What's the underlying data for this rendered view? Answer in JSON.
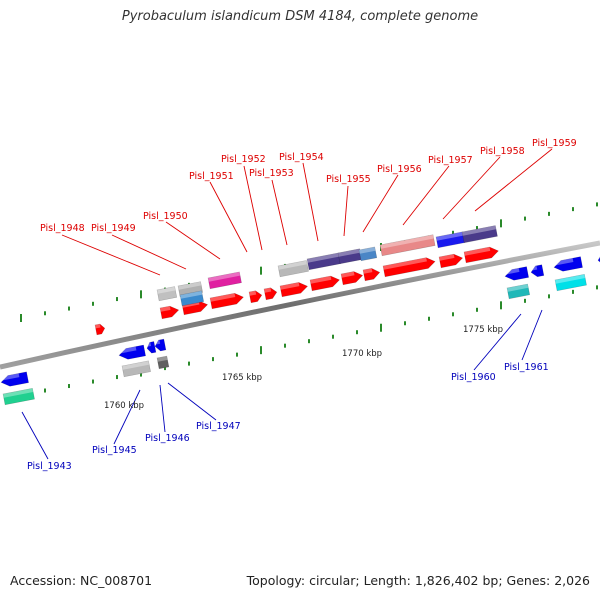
{
  "title": "Pyrobaculum islandicum DSM 4184, complete genome",
  "footer": {
    "accession": "Accession: NC_008701",
    "summary": "Topology: circular; Length: 1,826,402 bp; Genes: 2,026"
  },
  "colors": {
    "forward_label": "#dd0000",
    "reverse_label": "#0000bb",
    "backbone": "#8a8a8a",
    "tick": "#2a8a2a",
    "cds_forward": "#ff0000",
    "cds_reverse": "#0000ee"
  },
  "scale_labels": [
    "1760 kbp",
    "1765 kbp",
    "1770 kbp",
    "1775 kbp"
  ],
  "forward_labels": [
    "Pisl_1948",
    "Pisl_1949",
    "Pisl_1950",
    "Pisl_1951",
    "Pisl_1952",
    "Pisl_1953",
    "Pisl_1954",
    "Pisl_1955",
    "Pisl_1956",
    "Pisl_1957",
    "Pisl_1958",
    "Pisl_1959"
  ],
  "reverse_labels": [
    "Pisl_1943",
    "Pisl_1945",
    "Pisl_1946",
    "Pisl_1947",
    "Pisl_1960",
    "Pisl_1961"
  ]
}
